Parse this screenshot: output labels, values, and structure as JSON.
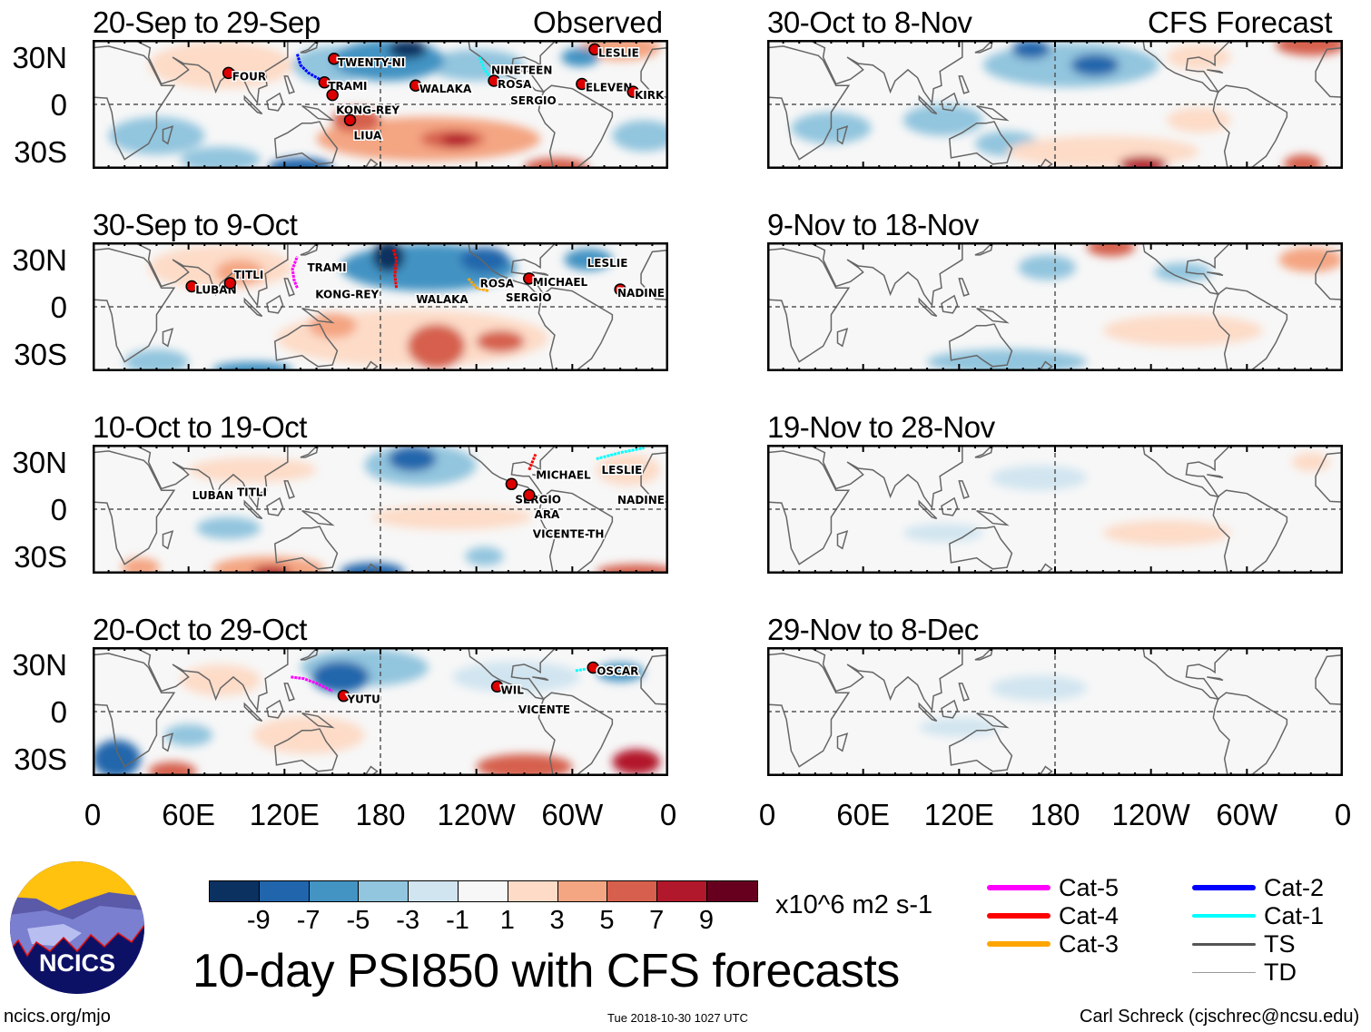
{
  "headers": {
    "observed": "Observed",
    "forecast": "CFS Forecast"
  },
  "lat_labels": [
    "30N",
    "0",
    "30S"
  ],
  "lon_labels": [
    "0",
    "60E",
    "120E",
    "180",
    "120W",
    "60W",
    "0"
  ],
  "panels": [
    {
      "title": "20-Sep to 29-Sep",
      "blobs": [
        {
          "lon": 80,
          "lat": 25,
          "rlon": 45,
          "rlat": 15,
          "v": 2
        },
        {
          "lon": 150,
          "lat": 25,
          "rlon": 25,
          "rlat": 12,
          "v": -3
        },
        {
          "lon": 185,
          "lat": 28,
          "rlon": 35,
          "rlat": 13,
          "v": -5
        },
        {
          "lon": 197,
          "lat": 35,
          "rlon": 12,
          "rlat": 6,
          "v": -9
        },
        {
          "lon": 240,
          "lat": 25,
          "rlon": 30,
          "rlat": 10,
          "v": -3
        },
        {
          "lon": 330,
          "lat": 36,
          "rlon": 25,
          "rlat": 8,
          "v": 5
        },
        {
          "lon": 305,
          "lat": 30,
          "rlon": 12,
          "rlat": 6,
          "v": -5
        },
        {
          "lon": 210,
          "lat": -22,
          "rlon": 70,
          "rlat": 14,
          "v": 5
        },
        {
          "lon": 165,
          "lat": -10,
          "rlon": 15,
          "rlat": 8,
          "v": 7
        },
        {
          "lon": 225,
          "lat": -22,
          "rlon": 20,
          "rlat": 6,
          "v": 7
        },
        {
          "lon": 228,
          "lat": -23,
          "rlon": 10,
          "rlat": 4,
          "v": 9
        },
        {
          "lon": 290,
          "lat": -40,
          "rlon": 20,
          "rlat": 6,
          "v": 7
        },
        {
          "lon": 40,
          "lat": -20,
          "rlon": 30,
          "rlat": 12,
          "v": -3
        },
        {
          "lon": 130,
          "lat": -40,
          "rlon": 20,
          "rlat": 6,
          "v": -7
        },
        {
          "lon": 80,
          "lat": -35,
          "rlon": 25,
          "rlat": 8,
          "v": -3
        },
        {
          "lon": 345,
          "lat": -20,
          "rlon": 20,
          "rlat": 10,
          "v": -3
        }
      ],
      "storms": [
        {
          "name": "FOUR",
          "lon": 85,
          "lat": 20
        },
        {
          "name": "TWENTY-NI",
          "lon": 151,
          "lat": 29
        },
        {
          "name": "TRAMI",
          "lon": 145,
          "lat": 14
        },
        {
          "name": "KONG-REY",
          "lon": 150,
          "lat": 6
        },
        {
          "name": "WALAKA",
          "lon": 202,
          "lat": 12
        },
        {
          "name": "LIUA",
          "lon": 161,
          "lat": -10
        },
        {
          "name": "NINETEEN",
          "lon": 247,
          "lat": 24,
          "nomark": true
        },
        {
          "name": "ROSA",
          "lon": 251,
          "lat": 15
        },
        {
          "name": "SERGIO",
          "lon": 259,
          "lat": 12,
          "nomark": true
        },
        {
          "name": "LESLIE",
          "lon": 314,
          "lat": 35
        },
        {
          "name": "ELEVEN",
          "lon": 306,
          "lat": 13
        },
        {
          "name": "KIRK",
          "lon": 338,
          "lat": 8
        }
      ],
      "tracks": [
        {
          "cat": "Cat-2",
          "pts": [
            [
              128,
              32
            ],
            [
              130,
              25
            ],
            [
              135,
              20
            ],
            [
              142,
              16
            ]
          ]
        },
        {
          "cat": "Cat-1",
          "pts": [
            [
              242,
              30
            ],
            [
              245,
              22
            ],
            [
              249,
              17
            ]
          ]
        }
      ]
    },
    {
      "title": "30-Sep to 9-Oct",
      "blobs": [
        {
          "lon": 80,
          "lat": 25,
          "rlon": 45,
          "rlat": 14,
          "v": 3
        },
        {
          "lon": 92,
          "lat": 22,
          "rlon": 15,
          "rlat": 8,
          "v": 5
        },
        {
          "lon": 210,
          "lat": 25,
          "rlon": 55,
          "rlat": 15,
          "v": -5
        },
        {
          "lon": 185,
          "lat": 32,
          "rlon": 10,
          "rlat": 10,
          "v": -9
        },
        {
          "lon": 245,
          "lat": 30,
          "rlon": 15,
          "rlat": 8,
          "v": -7
        },
        {
          "lon": 310,
          "lat": 30,
          "rlon": 15,
          "rlat": 7,
          "v": -5
        },
        {
          "lon": 200,
          "lat": -20,
          "rlon": 85,
          "rlat": 18,
          "v": 3
        },
        {
          "lon": 150,
          "lat": -12,
          "rlon": 15,
          "rlat": 8,
          "v": 5
        },
        {
          "lon": 215,
          "lat": -25,
          "rlon": 18,
          "rlat": 14,
          "v": 7
        },
        {
          "lon": 255,
          "lat": -22,
          "rlon": 15,
          "rlat": 7,
          "v": 7
        },
        {
          "lon": 40,
          "lat": -35,
          "rlon": 20,
          "rlat": 8,
          "v": -3
        },
        {
          "lon": 100,
          "lat": -40,
          "rlon": 25,
          "rlat": 5,
          "v": -5
        }
      ],
      "storms": [
        {
          "name": "LUBAN",
          "lon": 62,
          "lat": 13
        },
        {
          "name": "TITLI",
          "lon": 86,
          "lat": 15
        },
        {
          "name": "TRAMI",
          "lon": 132,
          "lat": 27,
          "nomark": true
        },
        {
          "name": "KONG-REY",
          "lon": 137,
          "lat": 10,
          "nomark": true
        },
        {
          "name": "WALAKA",
          "lon": 200,
          "lat": 7,
          "nomark": true
        },
        {
          "name": "ROSA",
          "lon": 240,
          "lat": 17,
          "nomark": true
        },
        {
          "name": "SERGIO",
          "lon": 256,
          "lat": 8,
          "nomark": true
        },
        {
          "name": "MICHAEL",
          "lon": 273,
          "lat": 18
        },
        {
          "name": "LESLIE",
          "lon": 307,
          "lat": 30,
          "nomark": true
        },
        {
          "name": "NADINE",
          "lon": 330,
          "lat": 11
        }
      ],
      "tracks": [
        {
          "cat": "Cat-5",
          "pts": [
            [
              128,
              12
            ],
            [
              126,
              17
            ],
            [
              125,
              24
            ],
            [
              128,
              32
            ]
          ]
        },
        {
          "cat": "Cat-4",
          "pts": [
            [
              190,
              12
            ],
            [
              189,
              20
            ],
            [
              190,
              30
            ],
            [
              188,
              37
            ]
          ]
        },
        {
          "cat": "Cat-3",
          "pts": [
            [
              235,
              18
            ],
            [
              240,
              12
            ],
            [
              248,
              10
            ]
          ]
        }
      ]
    },
    {
      "title": "10-Oct to 19-Oct",
      "blobs": [
        {
          "lon": 205,
          "lat": 28,
          "rlon": 35,
          "rlat": 13,
          "v": -3
        },
        {
          "lon": 200,
          "lat": 32,
          "rlon": 15,
          "rlat": 8,
          "v": -7
        },
        {
          "lon": 225,
          "lat": -5,
          "rlon": 50,
          "rlat": 8,
          "v": 3
        },
        {
          "lon": 110,
          "lat": -38,
          "rlon": 35,
          "rlat": 8,
          "v": 5
        },
        {
          "lon": 112,
          "lat": -40,
          "rlon": 12,
          "rlat": 4,
          "v": 9
        },
        {
          "lon": 30,
          "lat": -37,
          "rlon": 12,
          "rlat": 6,
          "v": 5
        },
        {
          "lon": 175,
          "lat": -40,
          "rlon": 20,
          "rlat": 6,
          "v": -7
        },
        {
          "lon": 85,
          "lat": -12,
          "rlon": 20,
          "rlat": 7,
          "v": -3
        },
        {
          "lon": 335,
          "lat": 25,
          "rlon": 20,
          "rlat": 10,
          "v": 3
        },
        {
          "lon": 340,
          "lat": -40,
          "rlon": 25,
          "rlat": 5,
          "v": 7
        },
        {
          "lon": 100,
          "lat": 25,
          "rlon": 40,
          "rlat": 8,
          "v": 2
        },
        {
          "lon": 245,
          "lat": -30,
          "rlon": 12,
          "rlat": 6,
          "v": -3
        }
      ],
      "storms": [
        {
          "name": "LUBAN",
          "lon": 60,
          "lat": 11,
          "nomark": true
        },
        {
          "name": "TITLI",
          "lon": 88,
          "lat": 13,
          "nomark": true
        },
        {
          "name": "MICHAEL",
          "lon": 275,
          "lat": 24,
          "nomark": true
        },
        {
          "name": "SERGIO",
          "lon": 262,
          "lat": 16
        },
        {
          "name": "ARA",
          "lon": 274,
          "lat": 14,
          "nomark": true
        },
        {
          "name": "VICENTE-TH",
          "lon": 273,
          "lat": 9
        },
        {
          "name": "LESLIE",
          "lon": 316,
          "lat": 27,
          "nomark": true
        },
        {
          "name": "NADINE",
          "lon": 330,
          "lat": 8,
          "nomark": true
        }
      ],
      "tracks": [
        {
          "cat": "Cat-1",
          "pts": [
            [
              315,
              32
            ],
            [
              330,
              36
            ],
            [
              345,
              39
            ]
          ]
        },
        {
          "cat": "Cat-4",
          "pts": [
            [
              273,
              25
            ],
            [
              275,
              30
            ],
            [
              277,
              35
            ]
          ]
        }
      ]
    },
    {
      "title": "20-Oct to 29-Oct",
      "blobs": [
        {
          "lon": 170,
          "lat": 28,
          "rlon": 40,
          "rlat": 12,
          "v": -3
        },
        {
          "lon": 155,
          "lat": 22,
          "rlon": 18,
          "rlat": 10,
          "v": -7
        },
        {
          "lon": 15,
          "lat": -30,
          "rlon": 15,
          "rlat": 12,
          "v": -7
        },
        {
          "lon": 330,
          "lat": 25,
          "rlon": 15,
          "rlat": 6,
          "v": -5
        },
        {
          "lon": 270,
          "lat": -35,
          "rlon": 30,
          "rlat": 8,
          "v": 7
        },
        {
          "lon": 340,
          "lat": -32,
          "rlon": 15,
          "rlat": 8,
          "v": 9
        },
        {
          "lon": 50,
          "lat": -38,
          "rlon": 15,
          "rlat": 6,
          "v": 7
        },
        {
          "lon": 80,
          "lat": 20,
          "rlon": 25,
          "rlat": 10,
          "v": 3
        },
        {
          "lon": 135,
          "lat": -15,
          "rlon": 35,
          "rlat": 12,
          "v": 3
        },
        {
          "lon": 60,
          "lat": -15,
          "rlon": 15,
          "rlat": 7,
          "v": -3
        },
        {
          "lon": 265,
          "lat": 22,
          "rlon": 40,
          "rlat": 10,
          "v": -1
        }
      ],
      "storms": [
        {
          "name": "YUTU",
          "lon": 157,
          "lat": 10
        },
        {
          "name": "WIL",
          "lon": 253,
          "lat": 16
        },
        {
          "name": "VICENTE",
          "lon": 264,
          "lat": 11,
          "nomark": true
        },
        {
          "name": "OSCAR",
          "lon": 313,
          "lat": 28
        }
      ],
      "tracks": [
        {
          "cat": "Cat-5",
          "pts": [
            [
              124,
              22
            ],
            [
              132,
              21
            ],
            [
              140,
              18
            ],
            [
              150,
              13
            ]
          ]
        },
        {
          "cat": "Cat-1",
          "pts": [
            [
              302,
              26
            ],
            [
              308,
              27
            ]
          ]
        }
      ]
    },
    {
      "title": "30-Oct to 8-Nov",
      "blobs": [
        {
          "lon": 340,
          "lat": 38,
          "rlon": 22,
          "rlat": 7,
          "v": 7
        },
        {
          "lon": 190,
          "lat": 25,
          "rlon": 55,
          "rlat": 14,
          "v": -3
        },
        {
          "lon": 165,
          "lat": 35,
          "rlon": 12,
          "rlat": 6,
          "v": -7
        },
        {
          "lon": 205,
          "lat": 25,
          "rlon": 15,
          "rlat": 7,
          "v": -7
        },
        {
          "lon": 270,
          "lat": 30,
          "rlon": 20,
          "rlat": 8,
          "v": 3
        },
        {
          "lon": 40,
          "lat": -15,
          "rlon": 25,
          "rlat": 10,
          "v": -3
        },
        {
          "lon": 110,
          "lat": -10,
          "rlon": 25,
          "rlat": 10,
          "v": -3
        },
        {
          "lon": 150,
          "lat": -25,
          "rlon": 20,
          "rlat": 8,
          "v": -3
        },
        {
          "lon": 210,
          "lat": -30,
          "rlon": 60,
          "rlat": 10,
          "v": 3
        },
        {
          "lon": 235,
          "lat": -38,
          "rlon": 15,
          "rlat": 5,
          "v": 9
        },
        {
          "lon": 335,
          "lat": -38,
          "rlon": 12,
          "rlat": 6,
          "v": 7
        },
        {
          "lon": 270,
          "lat": -10,
          "rlon": 20,
          "rlat": 8,
          "v": 3
        }
      ]
    },
    {
      "title": "9-Nov to 18-Nov",
      "blobs": [
        {
          "lon": 215,
          "lat": 38,
          "rlon": 15,
          "rlat": 6,
          "v": 7
        },
        {
          "lon": 340,
          "lat": 30,
          "rlon": 20,
          "rlat": 8,
          "v": 5
        },
        {
          "lon": 175,
          "lat": 25,
          "rlon": 18,
          "rlat": 8,
          "v": -3
        },
        {
          "lon": 260,
          "lat": 22,
          "rlon": 18,
          "rlat": 6,
          "v": -3
        },
        {
          "lon": 260,
          "lat": -15,
          "rlon": 50,
          "rlat": 10,
          "v": 3
        },
        {
          "lon": 150,
          "lat": -35,
          "rlon": 50,
          "rlat": 8,
          "v": -3
        },
        {
          "lon": 90,
          "lat": 20,
          "rlon": 40,
          "rlat": 8,
          "v": 1
        }
      ]
    },
    {
      "title": "19-Nov to 28-Nov",
      "blobs": [
        {
          "lon": 250,
          "lat": -15,
          "rlon": 40,
          "rlat": 8,
          "v": 2
        },
        {
          "lon": 170,
          "lat": 20,
          "rlon": 30,
          "rlat": 8,
          "v": -1
        },
        {
          "lon": 40,
          "lat": 20,
          "rlon": 25,
          "rlat": 8,
          "v": 1
        },
        {
          "lon": 340,
          "lat": 30,
          "rlon": 12,
          "rlat": 6,
          "v": 2
        },
        {
          "lon": 110,
          "lat": -15,
          "rlon": 25,
          "rlat": 6,
          "v": -1
        }
      ]
    },
    {
      "title": "29-Nov to 8-Dec",
      "blobs": [
        {
          "lon": 270,
          "lat": -20,
          "rlon": 50,
          "rlat": 8,
          "v": 1
        },
        {
          "lon": 170,
          "lat": 15,
          "rlon": 30,
          "rlat": 8,
          "v": -1
        },
        {
          "lon": 50,
          "lat": 20,
          "rlon": 25,
          "rlat": 8,
          "v": 1
        },
        {
          "lon": 120,
          "lat": -10,
          "rlon": 25,
          "rlat": 6,
          "v": -1
        },
        {
          "lon": 345,
          "lat": 25,
          "rlon": 12,
          "rlat": 6,
          "v": 1
        }
      ]
    }
  ],
  "colorbar": {
    "colors": [
      "#0b3161",
      "#2166ac",
      "#4393c3",
      "#92c5de",
      "#d1e5f0",
      "#f7f7f7",
      "#fddbc7",
      "#f4a582",
      "#d6604d",
      "#b2182b",
      "#67001f"
    ],
    "labels": [
      "-9",
      "-7",
      "-5",
      "-3",
      "-1",
      "1",
      "3",
      "5",
      "7",
      "9"
    ],
    "units": "x10^6 m2 s-1"
  },
  "legend": [
    {
      "label": "Cat-5",
      "color": "#ff00ff",
      "w": 6
    },
    {
      "label": "Cat-4",
      "color": "#ff0000",
      "w": 6
    },
    {
      "label": "Cat-3",
      "color": "#ffa500",
      "w": 6
    },
    {
      "label": "Cat-2",
      "color": "#0000ff",
      "w": 6
    },
    {
      "label": "Cat-1",
      "color": "#00ffff",
      "w": 4
    },
    {
      "label": "TS",
      "color": "#555555",
      "w": 3
    },
    {
      "label": "TD",
      "color": "#999999",
      "w": 1
    }
  ],
  "logo_text": "NCICS",
  "title": "10-day PSI850 with CFS forecasts",
  "footer": {
    "left": "ncics.org/mjo",
    "center": "Tue 2018-10-30 1027 UTC",
    "right": "Carl Schreck (cjschrec@ncsu.edu)"
  }
}
